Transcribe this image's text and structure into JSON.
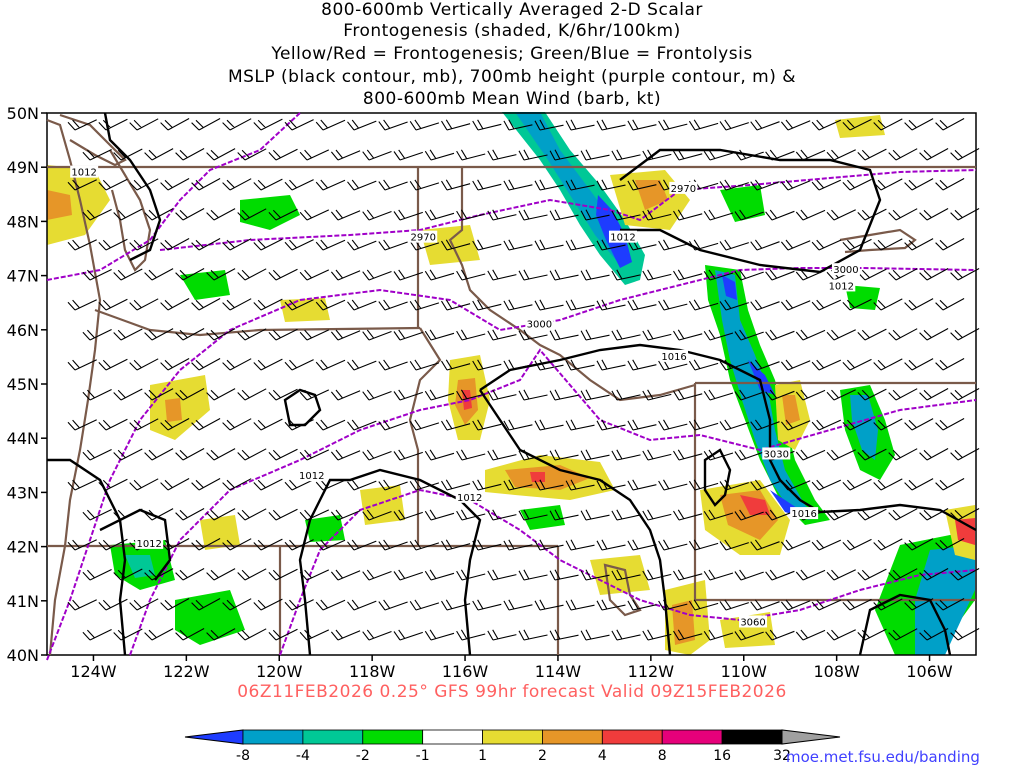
{
  "title": {
    "lines": [
      "800-600mb Vertically Averaged 2-D Scalar",
      "Frontogenesis (shaded, K/6hr/100km)",
      "Yellow/Red = Frontogenesis;  Green/Blue = Frontolysis",
      "MSLP (black contour, mb), 700mb height (purple contour, m) &",
      "800-600mb Mean Wind (barb, kt)"
    ]
  },
  "axes": {
    "lat_labels": [
      "50N",
      "49N",
      "48N",
      "47N",
      "46N",
      "45N",
      "44N",
      "43N",
      "42N",
      "41N",
      "40N"
    ],
    "lon_labels": [
      "124W",
      "122W",
      "120W",
      "118W",
      "116W",
      "114W",
      "112W",
      "110W",
      "108W",
      "106W"
    ],
    "lat_range": [
      40,
      50
    ],
    "lon_range": [
      -125,
      -105
    ]
  },
  "contour_labels": {
    "mslp": [
      {
        "text": "1012",
        "lat": 48.9,
        "lon": -124.2
      },
      {
        "text": "1012",
        "lat": 42.05,
        "lon": -122.8
      },
      {
        "text": "1012",
        "lat": 43.3,
        "lon": -119.3
      },
      {
        "text": "1012",
        "lat": 42.9,
        "lon": -115.9
      },
      {
        "text": "1012",
        "lat": 47.7,
        "lon": -112.6
      },
      {
        "text": "1012",
        "lat": 46.8,
        "lon": -107.9
      },
      {
        "text": "1016",
        "lat": 45.5,
        "lon": -111.5
      },
      {
        "text": "1016",
        "lat": 42.6,
        "lon": -108.7
      }
    ],
    "height": [
      {
        "text": "2970",
        "lat": 47.7,
        "lon": -116.9
      },
      {
        "text": "2970",
        "lat": 48.6,
        "lon": -111.3
      },
      {
        "text": "3000",
        "lat": 46.1,
        "lon": -114.4
      },
      {
        "text": "3000",
        "lat": 47.1,
        "lon": -107.8
      },
      {
        "text": "3030",
        "lat": 43.7,
        "lon": -109.3
      },
      {
        "text": "3060",
        "lat": 40.6,
        "lon": -109.8
      }
    ]
  },
  "footer": "06Z11FEB2026 0.25° GFS 99hr forecast Valid 09Z15FEB2026",
  "colorbar": {
    "labels": [
      "-8",
      "-4",
      "-2",
      "-1",
      "1",
      "2",
      "4",
      "8",
      "16",
      "32"
    ],
    "colors": [
      "#1e3cff",
      "#00a0c8",
      "#00c896",
      "#00dc00",
      "#ffffff",
      "#e6dc32",
      "#e69628",
      "#f03c3c",
      "#e6007a",
      "#000000",
      "#a0a0a0"
    ]
  },
  "credit": "moe.met.fsu.edu/banding",
  "colors": {
    "mslp": "#000000",
    "height": "#a000c8",
    "boundary": "#7a5a4a",
    "footer": "#ff6060",
    "credit": "#4040ff"
  }
}
